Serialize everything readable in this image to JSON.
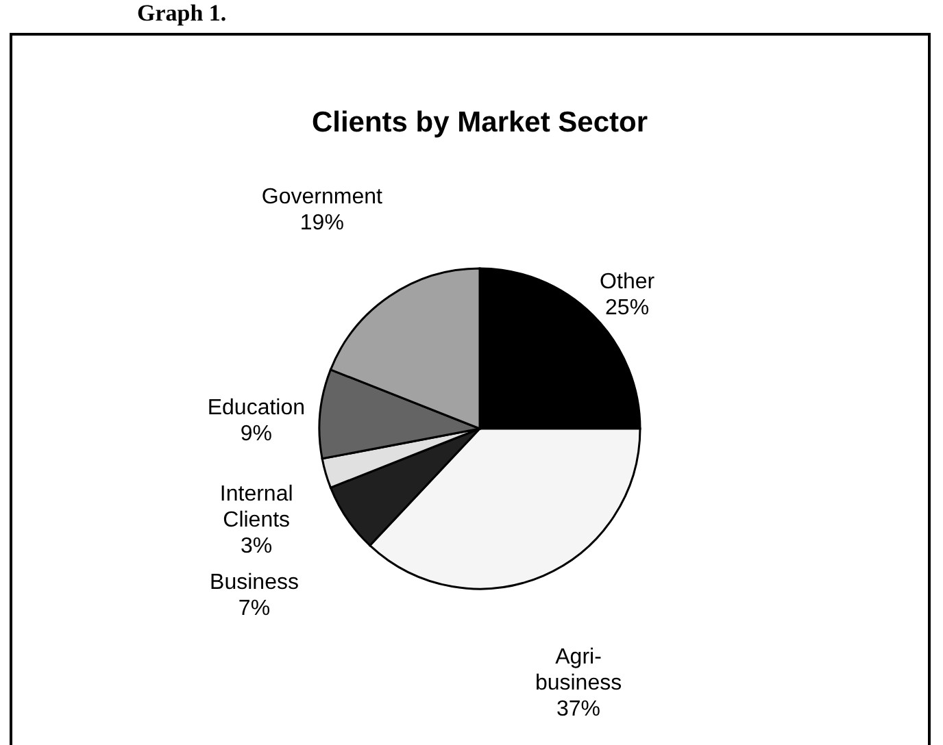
{
  "chart_data": {
    "type": "pie",
    "title": "Clients by Market Sector",
    "annotations": [
      "Graph 1."
    ],
    "categories": [
      "Other",
      "Agri-business",
      "Business",
      "Internal Clients",
      "Education",
      "Government"
    ],
    "values": [
      25,
      37,
      7,
      3,
      9,
      19
    ],
    "value_labels": [
      "25%",
      "37%",
      "7%",
      "3%",
      "9%",
      "19%"
    ],
    "colors": [
      "#000000",
      "#f5f5f5",
      "#202020",
      "#e0e0e0",
      "#646464",
      "#a2a2a2"
    ]
  }
}
